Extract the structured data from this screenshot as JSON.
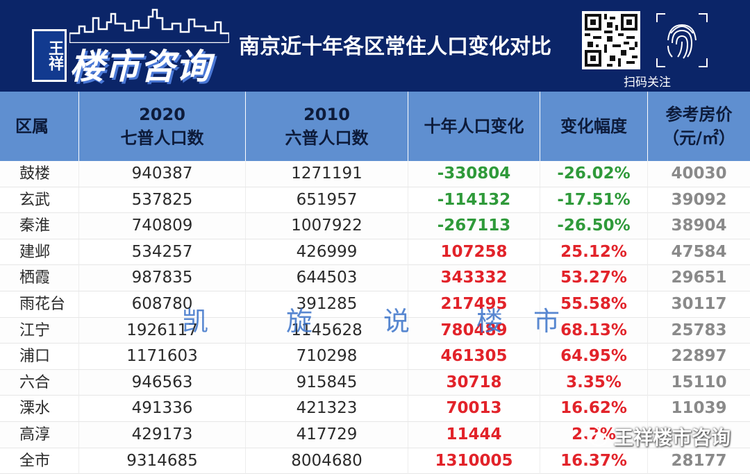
{
  "header": {
    "logo_badge": "王祥",
    "logo_text": "楼市咨询",
    "title": "南京近十年各区常住人口变化对比",
    "qr_label": "扫码关注",
    "icons": {
      "qr": "qr-code-icon",
      "fingerprint": "fingerprint-icon",
      "skyline": "city-skyline-icon"
    }
  },
  "table": {
    "headers": [
      {
        "lines": [
          "区属"
        ]
      },
      {
        "lines": [
          "2020",
          "七普人口数"
        ]
      },
      {
        "lines": [
          "2010",
          "六普人口数"
        ]
      },
      {
        "lines": [
          "十年人口变化"
        ]
      },
      {
        "lines": [
          "变化幅度"
        ]
      },
      {
        "lines": [
          "参考房价",
          "（元/㎡）"
        ]
      }
    ],
    "rows": [
      [
        "鼓楼",
        "940387",
        "1271191",
        "-330804",
        "-26.02%",
        "40030"
      ],
      [
        "玄武",
        "537825",
        "651957",
        "-114132",
        "-17.51%",
        "39092"
      ],
      [
        "秦淮",
        "740809",
        "1007922",
        "-267113",
        "-26.50%",
        "38904"
      ],
      [
        "建邺",
        "534257",
        "426999",
        "107258",
        "25.12%",
        "47584"
      ],
      [
        "栖霞",
        "987835",
        "644503",
        "343332",
        "53.27%",
        "29651"
      ],
      [
        "雨花台",
        "608780",
        "391285",
        "217495",
        "55.58%",
        "30117"
      ],
      [
        "江宁",
        "1926117",
        "1145628",
        "780489",
        "68.13%",
        "25783"
      ],
      [
        "浦口",
        "1171603",
        "710298",
        "461305",
        "64.95%",
        "22897"
      ],
      [
        "六合",
        "946563",
        "915845",
        "30718",
        "3.35%",
        "15110"
      ],
      [
        "溧水",
        "491336",
        "421323",
        "70013",
        "16.62%",
        "11039"
      ],
      [
        "高淳",
        "429173",
        "417729",
        "11444",
        "2.7%",
        ""
      ],
      [
        "全市",
        "9314685",
        "8004680",
        "1310005",
        "16.37%",
        "28177"
      ]
    ],
    "colors": {
      "header_bg": "#5f8fd0",
      "negative": "#2f9a3a",
      "positive": "#e2232a",
      "price": "#8a8a8a"
    }
  },
  "watermark": {
    "chars": [
      "凯",
      "旋",
      "说",
      "楼",
      "市"
    ],
    "brand": "王祥楼市咨询",
    "brand_icon": "wechat-icon"
  }
}
